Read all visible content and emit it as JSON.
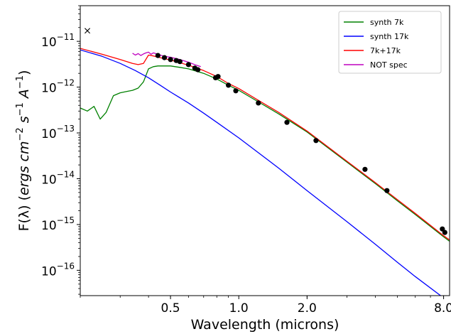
{
  "chart_data": {
    "type": "line",
    "xscale": "log",
    "yscale": "log",
    "xlim": [
      0.2,
      8.5
    ],
    "ylim": [
      2.8e-17,
      6e-11
    ],
    "xlabel": "Wavelength (microns)",
    "ylabel_parts": {
      "prefix": "F(λ) (",
      "u1": "ergs cm",
      "e1": "−2",
      "u2": " s",
      "e2": "−1",
      "u3": " A",
      "e3": "−1",
      "suffix": ")"
    },
    "x_ticks": [
      {
        "value": 0.5,
        "label": "0.5"
      },
      {
        "value": 1.0,
        "label": "1.0"
      },
      {
        "value": 2.0,
        "label": "2.0"
      },
      {
        "value": 8.0,
        "label": "8.0"
      }
    ],
    "y_ticks": [
      {
        "exp": -11,
        "base": "10",
        "label": "−11"
      },
      {
        "exp": -12,
        "base": "10",
        "label": "−12"
      },
      {
        "exp": -13,
        "base": "10",
        "label": "−13"
      },
      {
        "exp": -14,
        "base": "10",
        "label": "−14"
      },
      {
        "exp": -15,
        "base": "10",
        "label": "−15"
      },
      {
        "exp": -16,
        "base": "10",
        "label": "−16"
      }
    ],
    "legend_position": "top-right",
    "colors": {
      "synth_7k": "#008000",
      "synth_17k": "#0000ff",
      "sum": "#ff0000",
      "spec": "#bf00bf",
      "points": "#000000"
    },
    "series": [
      {
        "name": "synth 7k",
        "color": "#008000",
        "x": [
          0.2,
          0.215,
          0.23,
          0.245,
          0.26,
          0.28,
          0.3,
          0.32,
          0.34,
          0.36,
          0.38,
          0.4,
          0.42,
          0.44,
          0.46,
          0.5,
          0.55,
          0.6,
          0.7,
          0.8,
          0.9,
          1.0,
          1.2,
          1.5,
          2.0,
          3.0,
          4.0,
          5.0,
          6.0,
          8.0,
          8.5
        ],
        "y": [
          3.5e-13,
          3e-13,
          3.8e-13,
          2e-13,
          2.8e-13,
          6.5e-13,
          7.5e-13,
          8e-13,
          8.5e-13,
          9.5e-13,
          1.3e-12,
          2.5e-12,
          2.8e-12,
          2.9e-12,
          2.9e-12,
          2.9e-12,
          2.7e-12,
          2.5e-12,
          2e-12,
          1.5e-12,
          1.1e-12,
          8.5e-13,
          5e-13,
          2.6e-13,
          1.05e-13,
          2.3e-14,
          7.8e-15,
          3.3e-15,
          1.65e-15,
          5.4e-16,
          4.3e-16
        ]
      },
      {
        "name": "synth 17k",
        "color": "#0000ff",
        "x": [
          0.2,
          0.25,
          0.3,
          0.35,
          0.4,
          0.45,
          0.5,
          0.6,
          0.7,
          0.8,
          1.0,
          1.5,
          2.0,
          3.0,
          4.0,
          5.0,
          6.0,
          8.0,
          8.5
        ],
        "y": [
          6.5e-12,
          4.7e-12,
          3.3e-12,
          2.3e-12,
          1.6e-12,
          1.1e-12,
          7.8e-13,
          4.5e-13,
          2.7e-13,
          1.7e-13,
          7.8e-14,
          1.7e-14,
          5.5e-15,
          1.15e-15,
          3.7e-16,
          1.5e-16,
          7.3e-17,
          2.5e-17,
          2e-17
        ]
      },
      {
        "name": "7k+17k",
        "color": "#ff0000",
        "x": [
          0.2,
          0.25,
          0.3,
          0.34,
          0.36,
          0.38,
          0.4,
          0.42,
          0.45,
          0.5,
          0.55,
          0.6,
          0.7,
          0.8,
          0.9,
          1.0,
          1.2,
          1.5,
          2.0,
          3.0,
          4.0,
          5.0,
          6.0,
          8.0,
          8.5
        ],
        "y": [
          7e-12,
          5.2e-12,
          4e-12,
          3.3e-12,
          3.1e-12,
          3.3e-12,
          5e-12,
          4.8e-12,
          4.4e-12,
          3.9e-12,
          3.4e-12,
          3e-12,
          2.3e-12,
          1.7e-12,
          1.2e-12,
          9.3e-13,
          5.4e-13,
          2.8e-13,
          1.1e-13,
          2.4e-14,
          8.2e-15,
          3.5e-15,
          1.75e-15,
          5.7e-16,
          4.6e-16
        ]
      },
      {
        "name": "NOT spec",
        "color": "#bf00bf",
        "x": [
          0.34,
          0.35,
          0.36,
          0.37,
          0.38,
          0.39,
          0.4,
          0.41,
          0.42,
          0.43,
          0.45,
          0.47,
          0.5,
          0.55,
          0.6,
          0.65,
          0.68
        ],
        "y": [
          5.5e-12,
          5e-12,
          5.4e-12,
          4.9e-12,
          5.3e-12,
          5.6e-12,
          5.8e-12,
          5.2e-12,
          5.6e-12,
          5.4e-12,
          5e-12,
          4.7e-12,
          4.5e-12,
          4e-12,
          3.5e-12,
          3e-12,
          2.8e-12
        ]
      }
    ],
    "photometry_points": {
      "color": "#000000",
      "x": [
        0.44,
        0.47,
        0.5,
        0.53,
        0.55,
        0.6,
        0.64,
        0.66,
        0.79,
        0.81,
        0.9,
        0.97,
        1.22,
        1.63,
        2.19,
        3.6,
        4.5,
        7.9,
        8.1
      ],
      "y": [
        4.9e-12,
        4.4e-12,
        4e-12,
        3.8e-12,
        3.6e-12,
        3.1e-12,
        2.6e-12,
        2.4e-12,
        1.6e-12,
        1.7e-12,
        1.1e-12,
        8.3e-13,
        4.5e-13,
        1.7e-13,
        6.8e-14,
        1.6e-14,
        5.5e-15,
        8e-16,
        6.7e-16
      ]
    },
    "upper_limit_marker": {
      "symbol": "×",
      "x": 0.215,
      "y": 1.7e-11
    }
  }
}
